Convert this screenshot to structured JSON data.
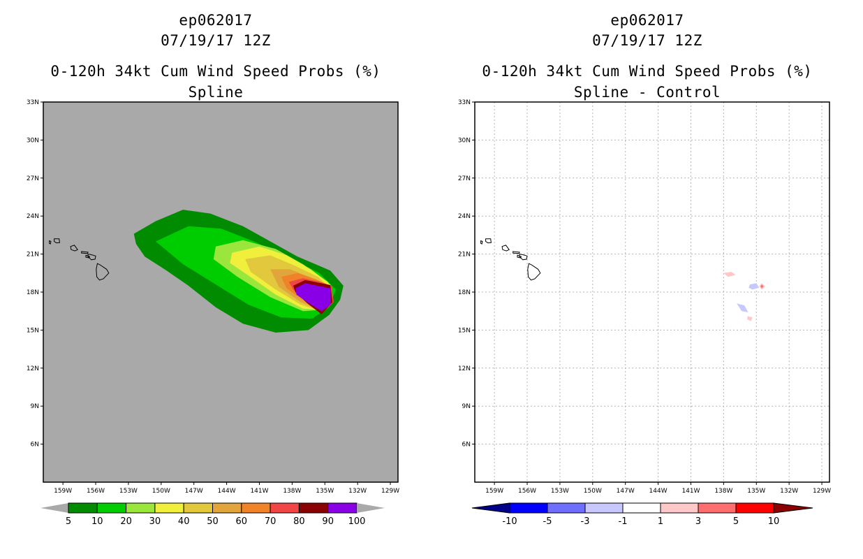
{
  "panels": {
    "left": {
      "storm_id": "ep062017",
      "datetime": "07/19/17 12Z",
      "product": "0-120h 34kt Cum Wind Speed Probs (%)",
      "subtitle": "Spline",
      "background_color": "#a9a9a9",
      "colorbar": {
        "labels": [
          "5",
          "10",
          "20",
          "30",
          "40",
          "50",
          "60",
          "70",
          "80",
          "90",
          "100"
        ],
        "colors": [
          "#008b00",
          "#00cd00",
          "#9be63c",
          "#f0f03c",
          "#e1c83c",
          "#e1a53c",
          "#f08228",
          "#f04646",
          "#8b0000",
          "#8a00e6"
        ],
        "end_color": "#a9a9a9"
      }
    },
    "right": {
      "storm_id": "ep062017",
      "datetime": "07/19/17 12Z",
      "product": "0-120h 34kt Cum Wind Speed Probs (%)",
      "subtitle": "Spline - Control",
      "background_color": "#ffffff",
      "colorbar": {
        "labels": [
          "-10",
          "-5",
          "-3",
          "-1",
          "1",
          "3",
          "5",
          "10"
        ],
        "colors": [
          "#0000ff",
          "#6e6eff",
          "#c8c8ff",
          "#ffffff",
          "#ffc8c8",
          "#ff6e6e",
          "#ff0000"
        ],
        "low_end_color": "#00008b",
        "high_end_color": "#8b0000"
      }
    }
  },
  "axes": {
    "lon_labels": [
      "159W",
      "156W",
      "153W",
      "150W",
      "147W",
      "144W",
      "141W",
      "138W",
      "135W",
      "132W",
      "129W"
    ],
    "lat_labels": [
      "33N",
      "30N",
      "27N",
      "24N",
      "21N",
      "18N",
      "15N",
      "12N",
      "9N",
      "6N"
    ],
    "lon_values": [
      -159,
      -156,
      -153,
      -150,
      -147,
      -144,
      -141,
      -138,
      -135,
      -132,
      -129
    ],
    "lat_values": [
      33,
      30,
      27,
      24,
      21,
      18,
      15,
      12,
      9,
      6
    ],
    "lon_range": [
      -160.8,
      -128.3
    ],
    "lat_range": [
      3.0,
      33.0
    ]
  }
}
